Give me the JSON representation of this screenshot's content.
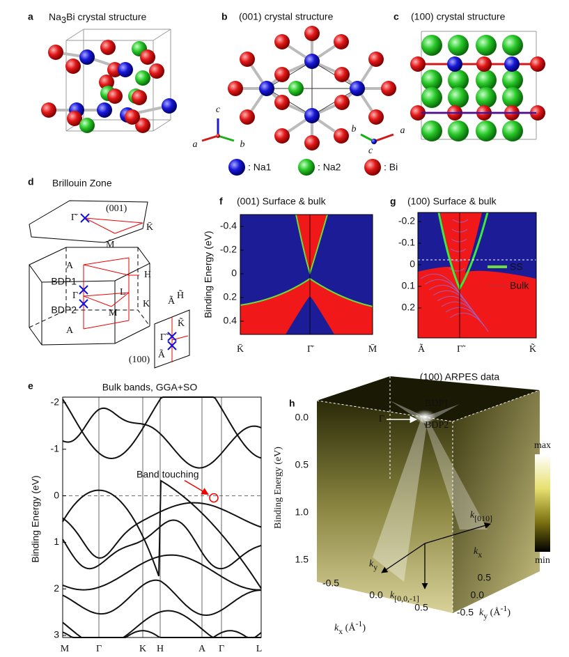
{
  "a": {
    "label": "a",
    "title": {
      "pre": "Na",
      "sub": "3",
      "post": "Bi crystal structure"
    }
  },
  "b": {
    "label": "b",
    "title": "(001) crystal structure",
    "axes_left": {
      "c": "c",
      "a": "a",
      "b": "b"
    },
    "axes_right": {
      "b": "b",
      "a": "a",
      "c": "c"
    }
  },
  "c": {
    "label": "c",
    "title": "(100) crystal structure"
  },
  "legend": [
    ": Na1",
    ": Na2",
    ": Bi"
  ],
  "d": {
    "label": "d",
    "title": "Brillouin Zone",
    "top": {
      "center": "Γ̄",
      "face": "(001)",
      "k": "K̄",
      "m": "M̄"
    },
    "bulk": {
      "a_top": "A",
      "h": "H",
      "l": "L",
      "bdp1": "BDP1",
      "gamma": "Γ",
      "bdp2": "BDP2",
      "m": "M",
      "k": "K",
      "a_bottom": "A"
    },
    "side": {
      "a_top": "Ã",
      "h": "H̃",
      "k": "K̃",
      "gamma": "Γ̃",
      "a_bottom": "Ã",
      "face": "(100)"
    }
  },
  "e": {
    "label": "e",
    "title": "Bulk bands, GGA+SO",
    "ylabel": "Binding Energy (eV)",
    "yticks": [
      "-2",
      "-1",
      "0",
      "1",
      "2",
      "3"
    ],
    "xticks": [
      "M",
      "Γ",
      "K",
      "H",
      "A",
      "Γ",
      "L"
    ],
    "annotation": "Band touching"
  },
  "f": {
    "label": "f",
    "title": "(001) Surface & bulk",
    "ylabel": "Binding Energy (eV)",
    "yticks": [
      "-0.4",
      "-0.2",
      "0",
      "0.2",
      "0.4"
    ],
    "xticks": [
      "K̄",
      "Γ̄",
      "M̄"
    ]
  },
  "g": {
    "label": "g",
    "title": "(100) Surface & bulk",
    "yticks": [
      "-0.2",
      "-0.1",
      "0",
      "0.1",
      "0.2"
    ],
    "xticks": [
      "Ã",
      "Γ̃",
      "K̃"
    ],
    "legend": [
      "SS",
      "Bulk"
    ]
  },
  "h": {
    "label": "h",
    "title": "(100) ARPES data",
    "bdp1": "BDP1",
    "bdp2": "BDP2",
    "gamma": "Γ",
    "ylabel": "Binding Energy (eV)",
    "yticks": [
      "0.0",
      "0.5",
      "1.0",
      "1.5"
    ],
    "kx_ticks": [
      "-0.5",
      "0.0",
      "0.5"
    ],
    "ky_ticks": [
      "0.5",
      "0.0",
      "-0.5"
    ],
    "kx_label": {
      "base": "k",
      "sub": "x",
      "unit": " (Å",
      "sup": "-1",
      "close": ")"
    },
    "ky_label": {
      "base": "k",
      "sub": "y",
      "unit": " (Å",
      "sup": "-1",
      "close": ")"
    },
    "colorbar": {
      "max": "max",
      "min": "min"
    },
    "inner": {
      "k010": {
        "base": "k",
        "sub": "[010]"
      },
      "kx": {
        "base": "k",
        "sub": "x"
      },
      "ky": {
        "base": "k",
        "sub": "y"
      },
      "k001": {
        "base": "k",
        "sub": "[0,0,-1]"
      }
    }
  }
}
